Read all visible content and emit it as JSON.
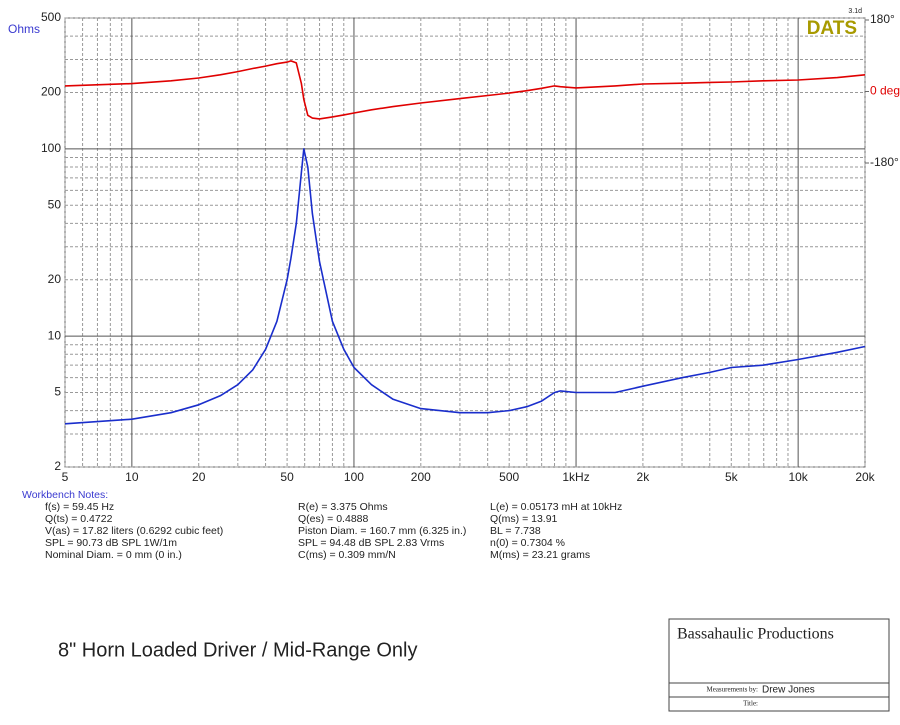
{
  "chart_data": {
    "type": "line",
    "y_label": "Ohms",
    "badge": "DATS",
    "version": "3.1d",
    "x": [
      5,
      10,
      15,
      20,
      25,
      30,
      35,
      40,
      45,
      50,
      52,
      55,
      58,
      59.45,
      62,
      65,
      70,
      80,
      90,
      100,
      120,
      150,
      200,
      300,
      400,
      500,
      600,
      700,
      800,
      850,
      1000,
      1500,
      2000,
      3000,
      4000,
      5000,
      7000,
      10000,
      15000,
      20000
    ],
    "series": [
      {
        "color": "#1a2ecc",
        "values": [
          3.4,
          3.6,
          3.9,
          4.3,
          4.8,
          5.5,
          6.6,
          8.5,
          12,
          20,
          26,
          40,
          75,
          100,
          80,
          45,
          25,
          12,
          8.5,
          6.8,
          5.5,
          4.6,
          4.1,
          3.9,
          3.9,
          4.0,
          4.2,
          4.5,
          5.0,
          5.1,
          5.0,
          5.0,
          5.4,
          6.0,
          6.4,
          6.8,
          7.0,
          7.5,
          8.2,
          8.8
        ]
      },
      {
        "color": "#e00000",
        "axis": "y2",
        "values": [
          14,
          20,
          27,
          34,
          42,
          50,
          58,
          64,
          70,
          74,
          77,
          72,
          20,
          -20,
          -60,
          -67,
          -69,
          -64,
          -59,
          -54,
          -46,
          -38,
          -29,
          -18,
          -10,
          -4,
          2,
          8,
          14,
          12,
          9,
          14,
          19,
          21,
          23,
          24,
          27,
          29,
          35,
          42
        ]
      }
    ],
    "log_x": true,
    "log_y": true,
    "xlim": [
      5,
      20000
    ],
    "xticks": [
      5,
      10,
      20,
      50,
      100,
      200,
      500,
      {
        "value": 1000,
        "label": "1kHz"
      },
      {
        "value": 2000,
        "label": "2k"
      },
      {
        "value": 5000,
        "label": "5k"
      },
      {
        "value": 10000,
        "label": "10k"
      },
      {
        "value": 20000,
        "label": "20k"
      }
    ],
    "xminor": [
      6,
      7,
      8,
      9,
      30,
      40,
      60,
      70,
      80,
      90,
      300,
      400,
      600,
      700,
      800,
      900,
      3000,
      4000,
      6000,
      7000,
      8000,
      9000
    ],
    "ylim": [
      2,
      500
    ],
    "yticks": [
      2,
      5,
      10,
      20,
      50,
      100,
      200,
      500
    ],
    "yminor": [
      3,
      4,
      6,
      7,
      8,
      9,
      30,
      40,
      60,
      70,
      80,
      90,
      300,
      400
    ],
    "y2lim": [
      -180,
      180
    ],
    "y2ticks": [
      {
        "value": 180,
        "label": "180°"
      },
      {
        "value": 0,
        "label": "0 deg"
      },
      {
        "value": -180,
        "label": "-180°"
      }
    ],
    "grid": true
  },
  "notes": {
    "title": "Workbench Notes:",
    "columns": [
      [
        "f(s) = 59.45 Hz",
        "Q(ts) = 0.4722",
        "V(as) = 17.82 liters  (0.6292 cubic feet)",
        "SPL = 90.73 dB SPL 1W/1m",
        "Nominal Diam. = 0 mm (0 in.)"
      ],
      [
        "R(e) = 3.375 Ohms",
        "Q(es) = 0.4888",
        "Piston Diam. = 160.7 mm (6.325 in.)",
        "SPL = 94.48 dB SPL 2.83 Vrms",
        "C(ms) = 0.309 mm/N"
      ],
      [
        "L(e) = 0.05173 mH at 10kHz",
        "Q(ms) = 13.91",
        "BL = 7.738",
        "n(0) = 0.7304 %",
        "M(ms) = 23.21 grams"
      ]
    ]
  },
  "caption": "8\" Horn Loaded Driver / Mid-Range Only",
  "title_block": {
    "company": "Bassahaulic Productions",
    "measured_label": "Measurements by:",
    "measured_by": "Drew Jones",
    "title_label": "Title:"
  }
}
